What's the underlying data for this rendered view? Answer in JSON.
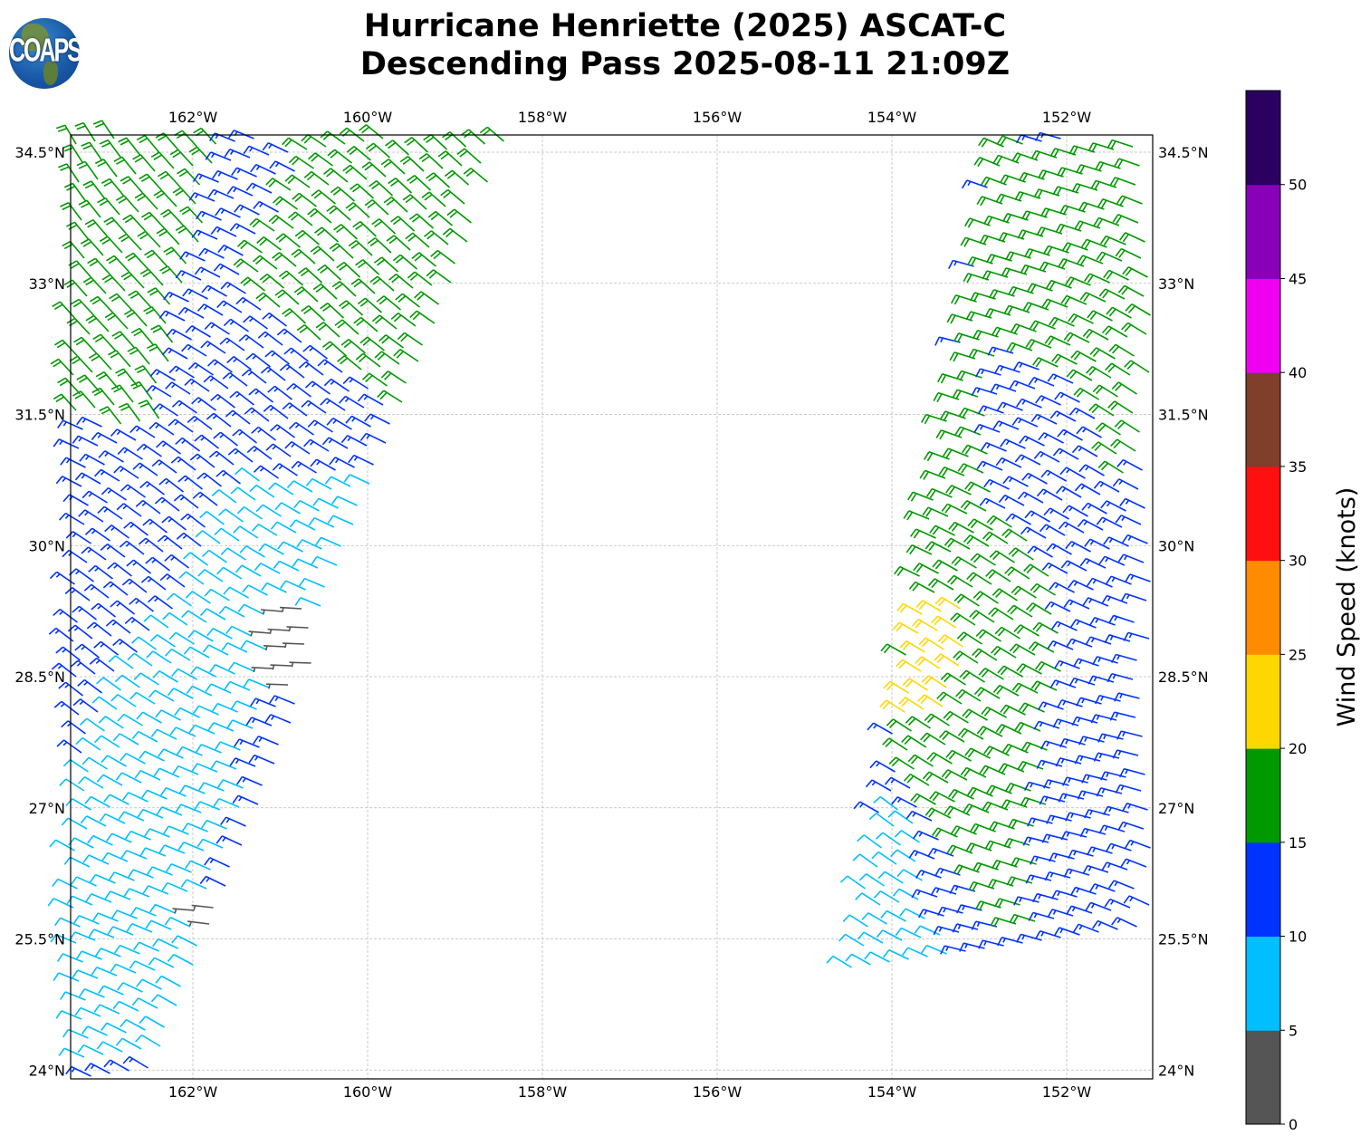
{
  "title": {
    "line1": "Hurricane Henriette (2025) ASCAT-C",
    "line2": "Descending Pass 2025-08-11 21:09Z"
  },
  "logo": {
    "text": "COAPS"
  },
  "chart_data": {
    "type": "wind-barb-map",
    "extent": {
      "lon": [
        -163.4,
        -151.02
      ],
      "lat": [
        23.9,
        34.7
      ]
    },
    "grid": true,
    "lon_ticks": [
      -162,
      -160,
      -158,
      -156,
      -154,
      -152
    ],
    "lon_tick_labels": [
      "162°W",
      "160°W",
      "158°W",
      "156°W",
      "154°W",
      "152°W"
    ],
    "lat_ticks": [
      34.5,
      33,
      31.5,
      30,
      28.5,
      27,
      25.5,
      24
    ],
    "lat_tick_labels": [
      "34.5°N",
      "33°N",
      "31.5°N",
      "30°N",
      "28.5°N",
      "27°N",
      "25.5°N",
      "24°N"
    ],
    "colorbar": {
      "label": "Wind Speed (knots)",
      "levels": [
        0,
        5,
        10,
        15,
        20,
        25,
        30,
        35,
        40,
        45,
        50,
        55
      ],
      "tick_labels": [
        "0",
        "5",
        "10",
        "15",
        "20",
        "25",
        "30",
        "35",
        "40",
        "45",
        "50"
      ],
      "colors": [
        "#555555",
        "#00bfff",
        "#0033ff",
        "#009900",
        "#ffd700",
        "#ff8c00",
        "#ff1010",
        "#7f3f2a",
        "#f000f0",
        "#8800b8",
        "#2c0060"
      ]
    },
    "swaths": [
      {
        "name": "west",
        "outline": [
          [
            -163.4,
            34.7
          ],
          [
            -158.4,
            34.7
          ],
          [
            -162.29,
            24.12
          ],
          [
            -162.65,
            23.9
          ],
          [
            -163.4,
            23.9
          ]
        ],
        "default_speed": 13,
        "default_dir": 300,
        "zones": [
          {
            "speed": 18,
            "dir": 325,
            "poly": [
              [
                -163.4,
                34.69
              ],
              [
                -161.62,
                34.69
              ],
              [
                -161.98,
                33.13
              ],
              [
                -162.39,
                31.37
              ],
              [
                -163.4,
                31.37
              ]
            ]
          },
          {
            "speed": 18,
            "dir": 305,
            "poly": [
              [
                -160.68,
                34.69
              ],
              [
                -158.4,
                34.69
              ],
              [
                -159.6,
                31.42
              ],
              [
                -160.06,
                31.89
              ],
              [
                -161.51,
                33.03
              ],
              [
                -161.1,
                33.55
              ]
            ]
          },
          {
            "speed": 9,
            "dir": 300,
            "poly": [
              [
                -161.36,
                30.75
              ],
              [
                -159.91,
                30.75
              ],
              [
                -160.27,
                29.61
              ],
              [
                -161.2,
                27.95
              ],
              [
                -162.24,
                24.12
              ],
              [
                -163.4,
                23.9
              ],
              [
                -163.4,
                26.91
              ],
              [
                -162.86,
                28.37
              ],
              [
                -162.13,
                29.4
              ],
              [
                -161.62,
                30.44
              ]
            ]
          },
          {
            "speed": 4,
            "dir": 280,
            "poly": [
              [
                -161.15,
                29.3
              ],
              [
                -160.48,
                29.3
              ],
              [
                -160.68,
                28.52
              ],
              [
                -160.94,
                28.0
              ],
              [
                -161.15,
                28.78
              ]
            ]
          },
          {
            "speed": 4,
            "dir": 280,
            "poly": [
              [
                -162.02,
                25.92
              ],
              [
                -161.62,
                25.92
              ],
              [
                -161.62,
                25.62
              ],
              [
                -162.02,
                25.62
              ]
            ]
          }
        ]
      },
      {
        "name": "east",
        "outline": [
          [
            -152.81,
            34.7
          ],
          [
            -151.02,
            34.7
          ],
          [
            -151.02,
            23.9
          ],
          [
            -154.69,
            23.9
          ]
        ],
        "default_speed": 13,
        "default_dir": 292,
        "zones": [
          {
            "speed": 18,
            "dir": 295,
            "poly": [
              [
                -152.81,
                34.58
              ],
              [
                -151.02,
                34.69
              ],
              [
                -151.02,
                31.37
              ],
              [
                -151.36,
                30.64
              ],
              [
                -151.77,
                31.89
              ],
              [
                -152.7,
                32.3
              ],
              [
                -152.91,
                31.89
              ],
              [
                -152.81,
                30.44
              ],
              [
                -151.98,
                29.61
              ],
              [
                -151.98,
                28.99
              ],
              [
                -152.19,
                27.43
              ],
              [
                -152.39,
                25.36
              ],
              [
                -153.22,
                26.4
              ],
              [
                -153.84,
                27.54
              ],
              [
                -154.0,
                28.05
              ],
              [
                -153.43,
                31.68
              ],
              [
                -153.07,
                32.61
              ]
            ]
          },
          {
            "speed": 22,
            "dir": 295,
            "poly": [
              [
                -153.69,
                29.51
              ],
              [
                -153.22,
                29.3
              ],
              [
                -153.07,
                28.57
              ],
              [
                -153.43,
                28.05
              ],
              [
                -153.74,
                27.85
              ],
              [
                -153.95,
                28.16
              ],
              [
                -153.79,
                28.99
              ]
            ]
          },
          {
            "speed": 9,
            "dir": 300,
            "poly": [
              [
                -154.1,
                27.12
              ],
              [
                -153.74,
                26.91
              ],
              [
                -153.43,
                25.67
              ],
              [
                -153.12,
                23.9
              ],
              [
                -154.67,
                23.9
              ],
              [
                -154.36,
                25.88
              ]
            ]
          },
          {
            "speed": 18,
            "dir": 292,
            "poly": [
              [
                -152.08,
                24.55
              ],
              [
                -151.35,
                24.55
              ],
              [
                -151.35,
                24.28
              ],
              [
                -152.08,
                24.28
              ]
            ]
          }
        ]
      }
    ]
  }
}
